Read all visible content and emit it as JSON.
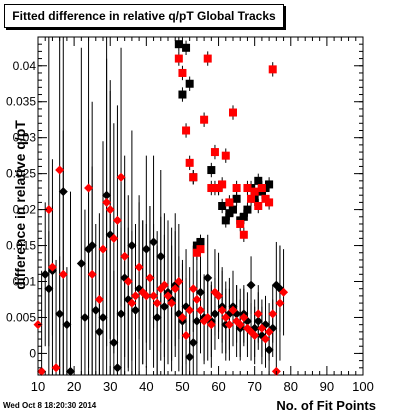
{
  "title": "Fitted difference in relative q/pT  Global Tracks",
  "timestamp": "Wed Oct  8 18:20:30 2014",
  "colors": {
    "black_series": "#000000",
    "red_series": "#ff0000",
    "errbar": "#000000"
  },
  "chart_data": {
    "type": "scatter",
    "title": "Fitted difference in relative q/pT  Global Tracks",
    "xlabel": "No. of Fit Points",
    "ylabel": "difference in relative q/pT",
    "xlim": [
      10,
      100
    ],
    "ylim": [
      -0.003,
      0.044
    ],
    "xticks": [
      10,
      20,
      30,
      40,
      50,
      60,
      70,
      80,
      90,
      100
    ],
    "yticks": [
      0,
      0.005,
      0.01,
      0.015,
      0.02,
      0.025,
      0.03,
      0.035,
      0.04
    ],
    "ytick_labels": [
      "0",
      "0.005",
      "0.01",
      "0.015",
      "0.02",
      "0.025",
      "0.03",
      "0.035",
      "0.04"
    ],
    "grid": false,
    "series": [
      {
        "marker": "diamond",
        "color": "#000000",
        "points": [
          [
            12,
            0.011,
            0.01
          ],
          [
            13,
            0.009,
            0.008
          ],
          [
            14,
            0.0115,
            0.009
          ],
          [
            16,
            0.0055,
            0.008
          ],
          [
            17,
            0.0225,
            0.03
          ],
          [
            18,
            0.004,
            0.008
          ],
          [
            19,
            -0.0025,
            0.025
          ],
          [
            22,
            0.0125,
            0.03
          ],
          [
            23,
            0.005,
            0.015
          ],
          [
            24,
            0.0145,
            0.018
          ],
          [
            25,
            0.015,
            0.02
          ],
          [
            26,
            0.006,
            0.012
          ],
          [
            27,
            0.003,
            0.01
          ],
          [
            28,
            0.005,
            0.012
          ],
          [
            29,
            0.022,
            0.025
          ],
          [
            30,
            0.0165,
            0.02
          ],
          [
            31,
            0.0015,
            0.01
          ],
          [
            32,
            -0.002,
            0.008
          ],
          [
            33,
            0.0055,
            0.012
          ],
          [
            34,
            0.0105,
            0.014
          ],
          [
            35,
            0.0075,
            0.01
          ],
          [
            36,
            0.015,
            0.016
          ],
          [
            37,
            0.006,
            0.012
          ],
          [
            38,
            0.009,
            0.012
          ],
          [
            39,
            0.0085,
            0.01
          ],
          [
            40,
            0.0145,
            0.013
          ],
          [
            41,
            0.0105,
            0.01
          ],
          [
            42,
            0.0155,
            0.012
          ],
          [
            43,
            0.005,
            0.01
          ],
          [
            44,
            0.0135,
            0.012
          ],
          [
            45,
            0.0065,
            0.01
          ],
          [
            46,
            0.0085,
            0.01
          ],
          [
            47,
            0.0075,
            0.01
          ],
          [
            48,
            0.0095,
            0.01
          ],
          [
            49,
            0.0055,
            0.008
          ],
          [
            50,
            0.0045,
            0.008
          ],
          [
            51,
            0.0065,
            0.008
          ],
          [
            52,
            -0.0005,
            0.006
          ],
          [
            53,
            0.0015,
            0.006
          ],
          [
            54,
            0.0045,
            0.007
          ],
          [
            55,
            0.0085,
            0.008
          ],
          [
            56,
            0.005,
            0.006
          ],
          [
            57,
            0.0105,
            0.006
          ],
          [
            58,
            0.0045,
            0.005
          ],
          [
            59,
            0.0055,
            0.005
          ],
          [
            60,
            0.008,
            0.005
          ],
          [
            61,
            0.0065,
            0.005
          ],
          [
            62,
            0.004,
            0.005
          ],
          [
            63,
            0.0055,
            0.005
          ],
          [
            64,
            0.0065,
            0.005
          ],
          [
            65,
            0.0055,
            0.004
          ],
          [
            66,
            0.0035,
            0.004
          ],
          [
            67,
            0.0055,
            0.004
          ],
          [
            68,
            0.0045,
            0.004
          ],
          [
            69,
            0.0095,
            0.004
          ],
          [
            70,
            0.0035,
            0.004
          ],
          [
            71,
            0.0045,
            0.004
          ],
          [
            72,
            0.0025,
            0.004
          ],
          [
            73,
            0.004,
            0.004
          ],
          [
            74,
            0.0005,
            0.004
          ],
          [
            75,
            0.0035,
            0.004
          ],
          [
            76,
            0.0095,
            0.006
          ],
          [
            77,
            0.009,
            0.006
          ]
        ]
      },
      {
        "marker": "diamond",
        "color": "#ff0000",
        "points": [
          [
            10,
            0.004,
            0.012
          ],
          [
            11,
            -0.0025,
            0.014
          ],
          [
            13,
            0.02,
            0.025
          ],
          [
            14,
            0.012,
            0.015
          ],
          [
            15,
            -0.002,
            0.015
          ],
          [
            16,
            0.0255,
            0.03
          ],
          [
            17,
            0.011,
            0.02
          ],
          [
            24,
            0.023,
            0.025
          ],
          [
            25,
            0.011,
            0.015
          ],
          [
            27,
            0.0075,
            0.012
          ],
          [
            28,
            0.0145,
            0.015
          ],
          [
            29,
            0.021,
            0.02
          ],
          [
            30,
            0.02,
            0.018
          ],
          [
            31,
            0.016,
            0.016
          ],
          [
            32,
            0.0185,
            0.016
          ],
          [
            33,
            0.0245,
            0.018
          ],
          [
            34,
            0.0135,
            0.014
          ],
          [
            35,
            0.01,
            0.012
          ],
          [
            36,
            0.007,
            0.01
          ],
          [
            37,
            0.008,
            0.01
          ],
          [
            38,
            0.012,
            0.01
          ],
          [
            39,
            0.0085,
            0.01
          ],
          [
            40,
            0.008,
            0.01
          ],
          [
            41,
            0.0105,
            0.01
          ],
          [
            42,
            0.008,
            0.01
          ],
          [
            43,
            0.007,
            0.01
          ],
          [
            44,
            0.009,
            0.01
          ],
          [
            45,
            0.0095,
            0.01
          ],
          [
            46,
            0.008,
            0.008
          ],
          [
            47,
            0.007,
            0.008
          ],
          [
            48,
            0.009,
            0.008
          ],
          [
            49,
            0.01,
            0.008
          ],
          [
            50,
            0.005,
            0.008
          ],
          [
            51,
            0.0025,
            0.008
          ],
          [
            52,
            0.006,
            0.006
          ],
          [
            53,
            0.009,
            0.006
          ],
          [
            54,
            0.0075,
            0.006
          ],
          [
            55,
            0.006,
            0.006
          ],
          [
            56,
            0.0045,
            0.006
          ],
          [
            57,
            0.005,
            0.006
          ],
          [
            58,
            0.004,
            0.006
          ],
          [
            59,
            0.0085,
            0.006
          ],
          [
            60,
            0.008,
            0.006
          ],
          [
            61,
            0.006,
            0.006
          ],
          [
            62,
            0.005,
            0.005
          ],
          [
            63,
            0.004,
            0.005
          ],
          [
            64,
            0.006,
            0.005
          ],
          [
            65,
            0.0045,
            0.005
          ],
          [
            66,
            0.004,
            0.005
          ],
          [
            67,
            0.005,
            0.004
          ],
          [
            68,
            0.0035,
            0.004
          ],
          [
            69,
            0.003,
            0.004
          ],
          [
            70,
            0.0025,
            0.004
          ],
          [
            71,
            0.0055,
            0.004
          ],
          [
            72,
            0.0035,
            0.004
          ],
          [
            73,
            0.002,
            0.004
          ],
          [
            74,
            0.003,
            0.004
          ],
          [
            75,
            0.0055,
            0.004
          ],
          [
            76,
            -0.0025,
            0.006
          ],
          [
            77,
            0.007,
            0.008
          ],
          [
            78,
            0.0085,
            0.006
          ]
        ]
      },
      {
        "marker": "square",
        "color": "#000000",
        "points": [
          [
            49,
            0.043,
            0.001
          ],
          [
            50,
            0.036,
            0.001
          ],
          [
            51,
            0.0425,
            0.001
          ],
          [
            52,
            0.0375,
            0.001
          ],
          [
            53,
            0.0245,
            0.001
          ],
          [
            54,
            0.015,
            0.001
          ],
          [
            55,
            0.0155,
            0.001
          ],
          [
            58,
            0.0255,
            0.001
          ],
          [
            59,
            0.023,
            0.001
          ],
          [
            60,
            0.023,
            0.001
          ],
          [
            61,
            0.0205,
            0.001
          ],
          [
            62,
            0.0185,
            0.001
          ],
          [
            63,
            0.0195,
            0.001
          ],
          [
            64,
            0.02,
            0.001
          ],
          [
            65,
            0.0215,
            0.001
          ],
          [
            66,
            0.0185,
            0.001
          ],
          [
            67,
            0.019,
            0.001
          ],
          [
            68,
            0.02,
            0.001
          ],
          [
            69,
            0.023,
            0.001
          ],
          [
            70,
            0.0215,
            0.001
          ],
          [
            71,
            0.024,
            0.001
          ],
          [
            72,
            0.0225,
            0.001
          ],
          [
            73,
            0.023,
            0.001
          ],
          [
            74,
            0.0235,
            0.001
          ]
        ]
      },
      {
        "marker": "square",
        "color": "#ff0000",
        "points": [
          [
            49,
            0.041,
            0.001
          ],
          [
            50,
            0.039,
            0.001
          ],
          [
            51,
            0.031,
            0.001
          ],
          [
            52,
            0.0265,
            0.001
          ],
          [
            53,
            0.0245,
            0.001
          ],
          [
            54,
            0.014,
            0.001
          ],
          [
            55,
            0.0145,
            0.001
          ],
          [
            56,
            0.0325,
            0.001
          ],
          [
            57,
            0.041,
            0.001
          ],
          [
            58,
            0.023,
            0.001
          ],
          [
            59,
            0.028,
            0.001
          ],
          [
            60,
            0.023,
            0.001
          ],
          [
            61,
            0.0235,
            0.001
          ],
          [
            62,
            0.0275,
            0.001
          ],
          [
            63,
            0.021,
            0.001
          ],
          [
            64,
            0.0335,
            0.001
          ],
          [
            65,
            0.023,
            0.001
          ],
          [
            66,
            0.018,
            0.001
          ],
          [
            67,
            0.0165,
            0.001
          ],
          [
            68,
            0.023,
            0.001
          ],
          [
            69,
            0.0215,
            0.001
          ],
          [
            70,
            0.0225,
            0.001
          ],
          [
            71,
            0.0205,
            0.001
          ],
          [
            72,
            0.023,
            0.001
          ],
          [
            73,
            0.0215,
            0.001
          ],
          [
            74,
            0.021,
            0.001
          ],
          [
            75,
            0.0395,
            0.001
          ]
        ]
      }
    ]
  }
}
